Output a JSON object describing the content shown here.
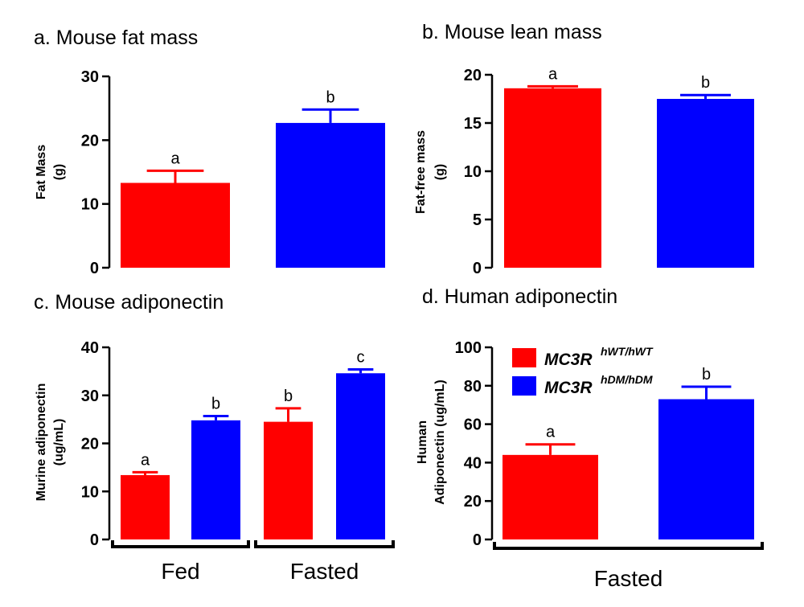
{
  "colors": {
    "red": "#ff0000",
    "blue": "#0000ff",
    "axis": "#000000"
  },
  "legend": {
    "entries": [
      {
        "label": "MC3R",
        "superscript": "hWT/hWT",
        "color": "#ff0000"
      },
      {
        "label": "MC3R",
        "superscript": "hDM/hDM",
        "color": "#0000ff"
      }
    ]
  },
  "chart_data": [
    {
      "type": "bar",
      "title": "a. Mouse fat mass",
      "ylabel": [
        "Fat Mass",
        "(g)"
      ],
      "ylim": [
        0,
        30
      ],
      "yticks": [
        0,
        10,
        20,
        30
      ],
      "bars": [
        {
          "value": 13.3,
          "error": 1.9,
          "label": "a",
          "color": "#ff0000"
        },
        {
          "value": 22.7,
          "error": 2.1,
          "label": "b",
          "color": "#0000ff"
        }
      ],
      "groups": []
    },
    {
      "type": "bar",
      "title": "b. Mouse lean mass",
      "ylabel": [
        "Fat-free mass",
        "(g)"
      ],
      "ylim": [
        0,
        20
      ],
      "yticks": [
        0,
        5,
        10,
        15,
        20
      ],
      "bars": [
        {
          "value": 18.6,
          "error": 0.2,
          "label": "a",
          "color": "#ff0000"
        },
        {
          "value": 17.5,
          "error": 0.4,
          "label": "b",
          "color": "#0000ff"
        }
      ],
      "groups": []
    },
    {
      "type": "bar",
      "title": "c. Mouse adiponectin",
      "ylabel": [
        "Murine adiponectin",
        "(ug/mL)"
      ],
      "ylim": [
        0,
        40
      ],
      "yticks": [
        0,
        10,
        20,
        30,
        40
      ],
      "bars": [
        {
          "value": 13.4,
          "error": 0.6,
          "label": "a",
          "color": "#ff0000"
        },
        {
          "value": 24.8,
          "error": 0.9,
          "label": "b",
          "color": "#0000ff"
        },
        {
          "value": 24.5,
          "error": 2.8,
          "label": "b",
          "color": "#ff0000"
        },
        {
          "value": 34.6,
          "error": 0.8,
          "label": "c",
          "color": "#0000ff"
        }
      ],
      "groups": [
        {
          "label": "Fed",
          "bars": [
            0,
            1
          ]
        },
        {
          "label": "Fasted",
          "bars": [
            2,
            3
          ]
        }
      ]
    },
    {
      "type": "bar",
      "title": "d. Human adiponectin",
      "ylabel": [
        "Human",
        "Adiponectin (ug/mL)"
      ],
      "ylim": [
        0,
        100
      ],
      "yticks": [
        0,
        20,
        40,
        60,
        80,
        100
      ],
      "bars": [
        {
          "value": 44,
          "error": 5.5,
          "label": "a",
          "color": "#ff0000"
        },
        {
          "value": 73,
          "error": 6.5,
          "label": "b",
          "color": "#0000ff"
        }
      ],
      "groups": [
        {
          "label": "Fasted",
          "bars": [
            0,
            1
          ]
        }
      ]
    }
  ]
}
